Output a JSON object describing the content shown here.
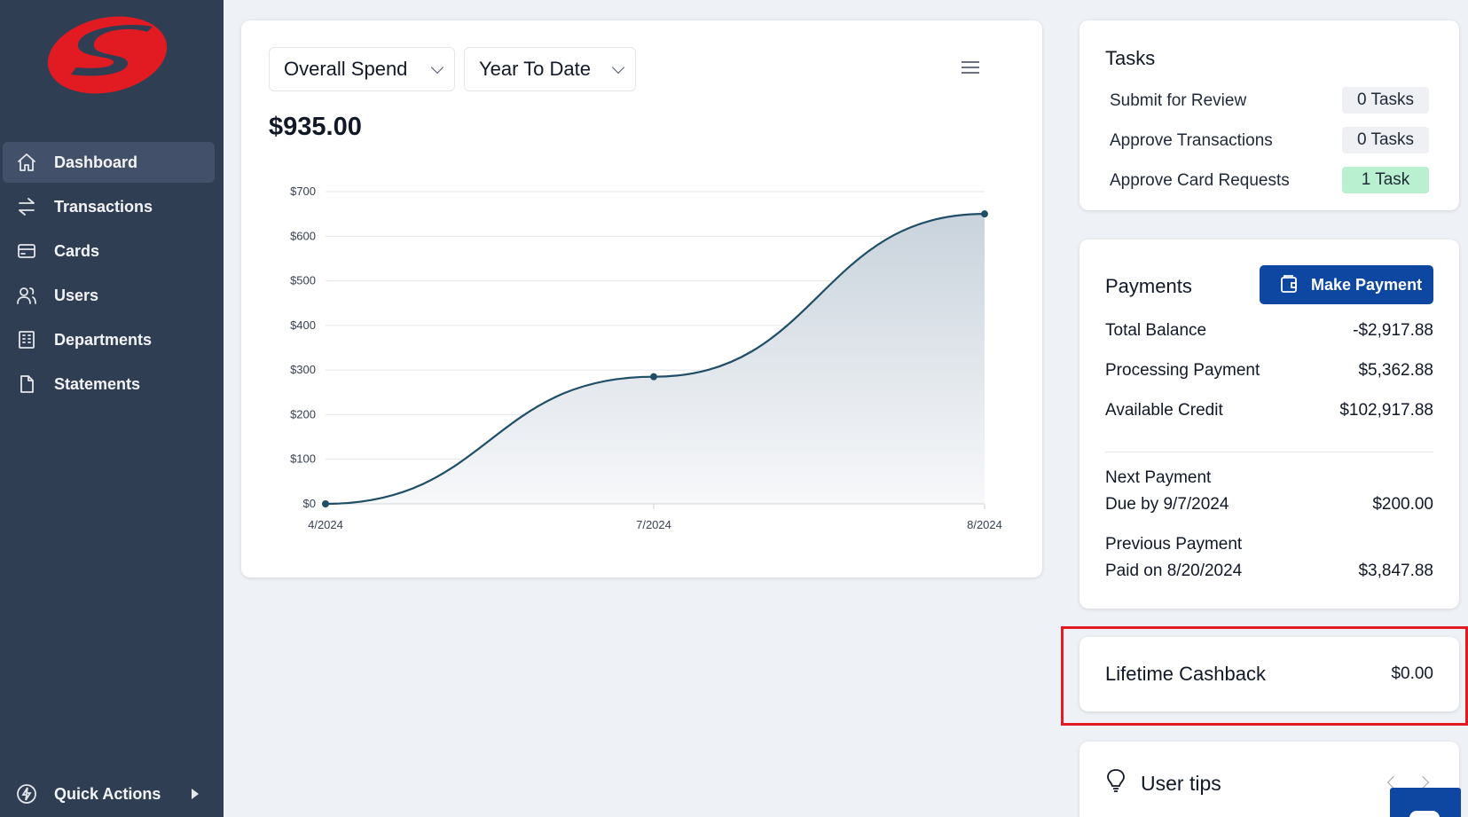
{
  "brand": {
    "accent": "#e21b23",
    "nav_bg": "#303e54",
    "primary": "#0d47a1"
  },
  "sidebar": {
    "items": [
      {
        "label": "Dashboard",
        "icon": "home-icon",
        "active": true
      },
      {
        "label": "Transactions",
        "icon": "arrows-exchange-icon"
      },
      {
        "label": "Cards",
        "icon": "credit-card-icon"
      },
      {
        "label": "Users",
        "icon": "users-icon"
      },
      {
        "label": "Departments",
        "icon": "building-icon"
      },
      {
        "label": "Statements",
        "icon": "document-icon"
      }
    ],
    "quick_actions": {
      "label": "Quick Actions",
      "icon": "lightning-icon"
    }
  },
  "spend": {
    "metric_select": "Overall Spend",
    "period_select": "Year To Date",
    "total": "$935.00"
  },
  "chart_data": {
    "type": "area",
    "x": [
      "4/2024",
      "7/2024",
      "8/2024"
    ],
    "y_ticks": [
      "$0",
      "$100",
      "$200",
      "$300",
      "$400",
      "$500",
      "$600",
      "$700"
    ],
    "ylim": [
      0,
      700
    ],
    "series": [
      {
        "values": [
          0,
          285,
          650
        ]
      }
    ],
    "grid": true,
    "line_color": "#1f4e66"
  },
  "tasks": {
    "title": "Tasks",
    "rows": [
      {
        "label": "Submit for Review",
        "value": "0 Tasks"
      },
      {
        "label": "Approve Transactions",
        "value": "0 Tasks"
      },
      {
        "label": "Approve Card Requests",
        "value": "1 Task",
        "highlight": true
      }
    ]
  },
  "payments": {
    "title": "Payments",
    "make_payment_label": "Make Payment",
    "total_balance_label": "Total Balance",
    "total_balance": "-$2,917.88",
    "processing_label": "Processing Payment",
    "processing": "$5,362.88",
    "available_label": "Available Credit",
    "available": "$102,917.88",
    "next_label": "Next Payment",
    "next_due": "Due by 9/7/2024",
    "next_amount": "$200.00",
    "prev_label": "Previous Payment",
    "prev_paid": "Paid on 8/20/2024",
    "prev_amount": "$3,847.88"
  },
  "cashback": {
    "label": "Lifetime Cashback",
    "value": "$0.00"
  },
  "tips": {
    "title": "User tips"
  }
}
